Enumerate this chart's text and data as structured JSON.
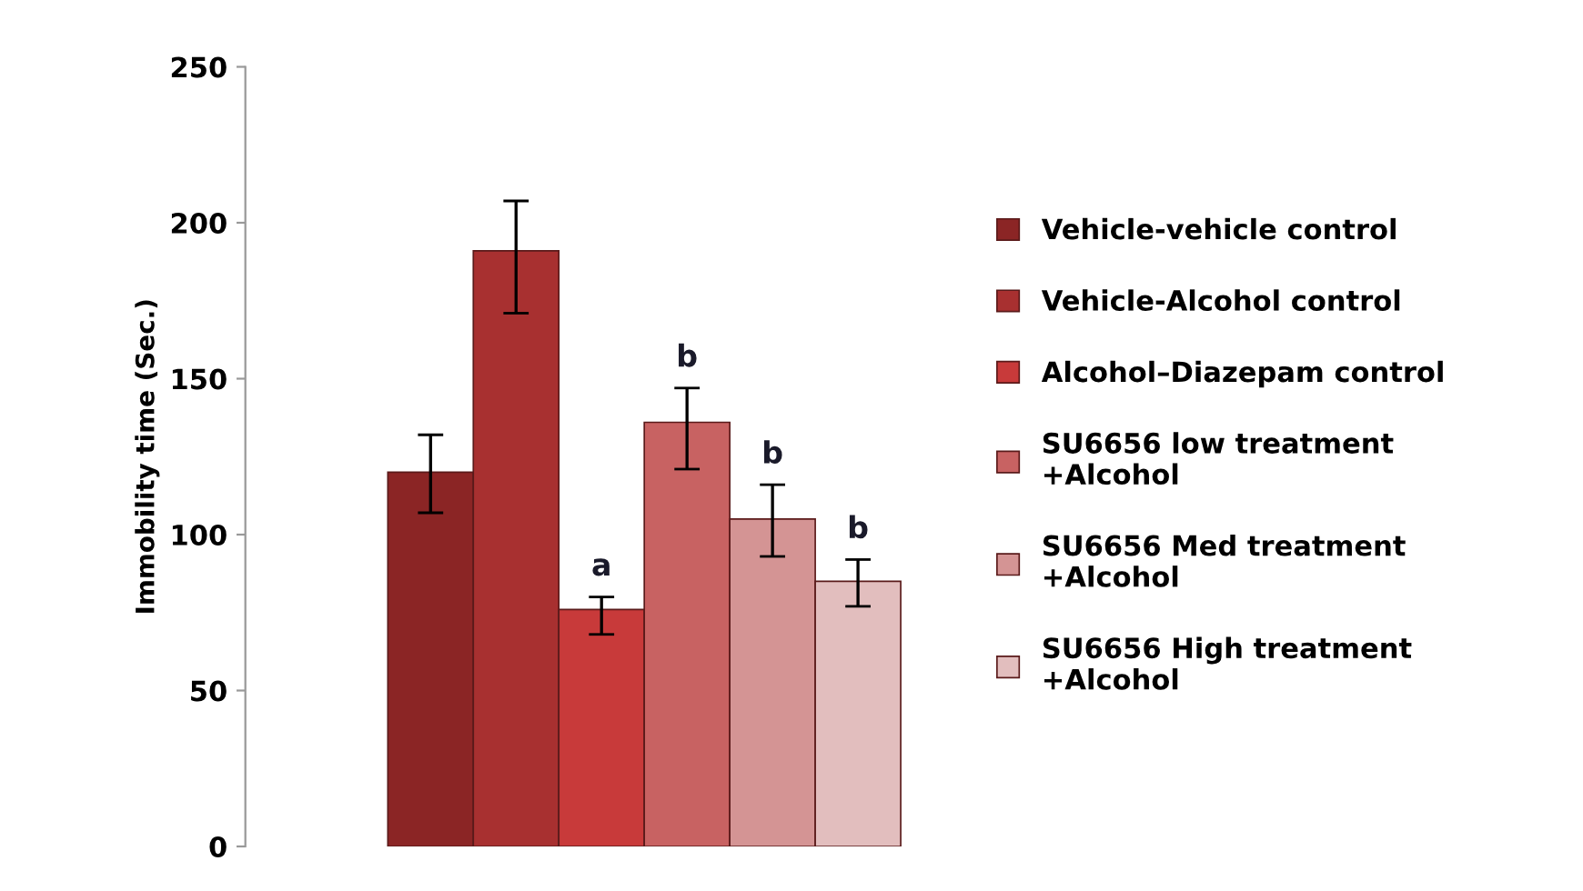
{
  "chart_data": {
    "type": "bar",
    "ylabel": "Immobility time (Sec.)",
    "categories": [
      null
    ],
    "series": [
      {
        "name": "Vehicle-vehicle control",
        "color": "#8b2525",
        "values": [
          120
        ],
        "errors": [
          [
            107,
            132
          ]
        ]
      },
      {
        "name": "Vehicle-Alcohol control",
        "color": "#a83030",
        "values": [
          191
        ],
        "errors": [
          [
            171,
            207
          ]
        ]
      },
      {
        "name": "Alcohol–Diazepam control",
        "color": "#c83a3a",
        "values": [
          76
        ],
        "errors": [
          [
            68,
            80
          ]
        ],
        "value_labels": [
          "a"
        ]
      },
      {
        "name": "SU6656 low treatment +Alcohol",
        "color": "#c86262",
        "values": [
          136
        ],
        "errors": [
          [
            121,
            147
          ]
        ],
        "value_labels": [
          "b"
        ]
      },
      {
        "name": "SU6656 Med treatment +Alcohol",
        "color": "#d49494",
        "values": [
          105
        ],
        "errors": [
          [
            93,
            116
          ]
        ],
        "value_labels": [
          "b"
        ]
      },
      {
        "name": "SU6656 High treatment +Alcohol",
        "color": "#e2bebe",
        "values": [
          85
        ],
        "errors": [
          [
            77,
            92
          ]
        ],
        "value_labels": [
          "b"
        ]
      }
    ],
    "ylim": [
      0,
      250
    ],
    "yticks": [
      0,
      50,
      100,
      150,
      200,
      250
    ],
    "grid": false,
    "legend": "right"
  }
}
